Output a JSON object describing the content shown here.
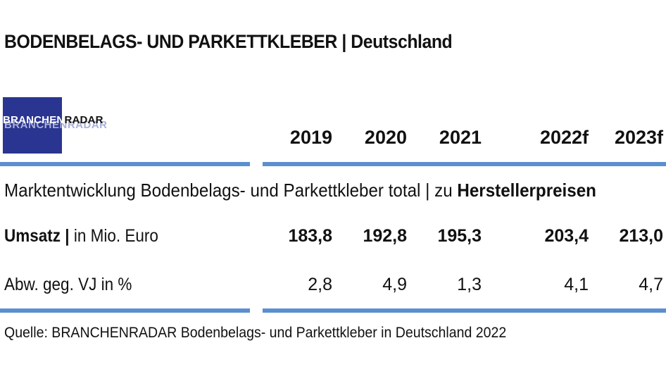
{
  "title": "BODENBELAGS- UND PARKETTKLEBER | Deutschland",
  "logo": {
    "part1": "BRANCHEN",
    "part2": "RADAR"
  },
  "subtitle": {
    "text": "Marktentwicklung Bodenbelags- und Parkettkleber total | zu ",
    "bold": "Herstellerpreisen"
  },
  "chart_data": {
    "type": "table",
    "columns": [
      "2019",
      "2020",
      "2021",
      "2022f",
      "2023f"
    ],
    "rows": [
      {
        "label_bold": "Umsatz |",
        "label_rest": " in Mio. Euro",
        "values": [
          "183,8",
          "192,8",
          "195,3",
          "203,4",
          "213,0"
        ]
      },
      {
        "label_bold": "",
        "label_rest": "Abw. geg. VJ in %",
        "values": [
          "2,8",
          "4,9",
          "1,3",
          "4,1",
          "4,7"
        ]
      }
    ],
    "colors": {
      "rule": "#5b8fd1",
      "logo_bg": "#2a3591"
    }
  },
  "source": "Quelle: BRANCHENRADAR Bodenbelags- und Parkettkleber in Deutschland 2022"
}
